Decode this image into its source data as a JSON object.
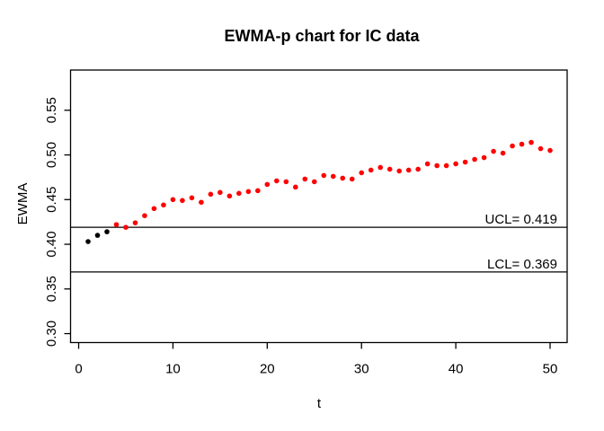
{
  "chart_data": {
    "type": "scatter",
    "title": "EWMA-p chart for IC data",
    "xlabel": "t",
    "ylabel": "EWMA",
    "x": [
      1,
      2,
      3,
      4,
      5,
      6,
      7,
      8,
      9,
      10,
      11,
      12,
      13,
      14,
      15,
      16,
      17,
      18,
      19,
      20,
      21,
      22,
      23,
      24,
      25,
      26,
      27,
      28,
      29,
      30,
      31,
      32,
      33,
      34,
      35,
      36,
      37,
      38,
      39,
      40,
      41,
      42,
      43,
      44,
      45,
      46,
      47,
      48,
      49,
      50
    ],
    "values": [
      0.403,
      0.41,
      0.414,
      0.422,
      0.419,
      0.424,
      0.432,
      0.44,
      0.444,
      0.45,
      0.449,
      0.452,
      0.447,
      0.456,
      0.458,
      0.454,
      0.457,
      0.459,
      0.46,
      0.467,
      0.471,
      0.47,
      0.464,
      0.473,
      0.47,
      0.477,
      0.476,
      0.474,
      0.473,
      0.48,
      0.483,
      0.486,
      0.484,
      0.482,
      0.483,
      0.484,
      0.49,
      0.488,
      0.488,
      0.49,
      0.492,
      0.495,
      0.497,
      0.504,
      0.502,
      0.51,
      0.512,
      0.514,
      0.507,
      0.505
    ],
    "n_initial_black_points": 3,
    "colors": {
      "initial_points": "#000000",
      "monitoring_points": "#ff0000",
      "limit_lines": "#000000",
      "box": "#000000"
    },
    "ucl": 0.419,
    "lcl": 0.369,
    "ucl_label": "UCL= 0.419",
    "lcl_label": "LCL= 0.369",
    "x_ticks": [
      0,
      10,
      20,
      30,
      40,
      50
    ],
    "x_tick_labels": [
      "0",
      "10",
      "20",
      "30",
      "40",
      "50"
    ],
    "y_ticks": [
      0.3,
      0.35,
      0.4,
      0.45,
      0.5,
      0.55
    ],
    "y_tick_labels": [
      "0.30",
      "0.35",
      "0.40",
      "0.45",
      "0.50",
      "0.55"
    ],
    "xlim": [
      -0.86,
      51.81
    ],
    "ylim": [
      0.29,
      0.595
    ],
    "grid": false,
    "legend": null
  }
}
